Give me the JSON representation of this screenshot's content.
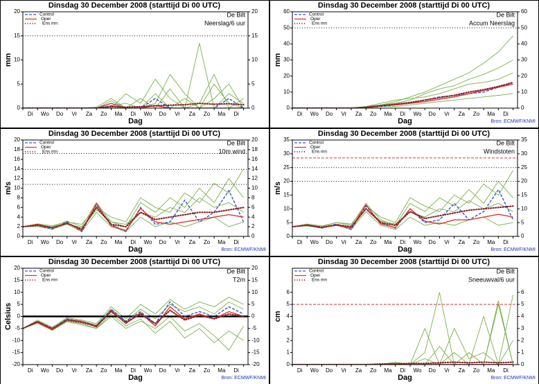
{
  "shared": {
    "x": [
      0,
      1,
      2,
      3,
      4,
      5,
      6,
      7,
      8,
      9,
      10,
      11,
      12,
      13,
      14,
      15
    ],
    "xlim": [
      0,
      15.3
    ],
    "xlabel": "Dag",
    "xticks": [
      {
        "value": 0.5,
        "label": "Di"
      },
      {
        "value": 1.5,
        "label": "Wo"
      },
      {
        "value": 2.5,
        "label": "Do"
      },
      {
        "value": 3.5,
        "label": "Vr"
      },
      {
        "value": 4.5,
        "label": "Za"
      },
      {
        "value": 5.5,
        "label": "Zo"
      },
      {
        "value": 6.5,
        "label": "Ma"
      },
      {
        "value": 7.5,
        "label": "Di"
      },
      {
        "value": 8.5,
        "label": "Wo"
      },
      {
        "value": 9.5,
        "label": "Do"
      },
      {
        "value": 10.5,
        "label": "Vr"
      },
      {
        "value": 11.5,
        "label": "Za"
      },
      {
        "value": 12.5,
        "label": "Zo"
      },
      {
        "value": 13.5,
        "label": "Ma"
      },
      {
        "value": 14.5,
        "label": "Di"
      }
    ],
    "member_color": "#77b04a"
  },
  "chart_data": [
    {
      "type": "line",
      "title": "Dinsdag   30 December  2008  (starttijd  Di 00 UTC)",
      "station": "De Bilt",
      "subtitle": "Neerslag/6 uur",
      "ylabel": "mm",
      "ylim": [
        0,
        20
      ],
      "yticks": [
        0,
        5,
        10,
        15,
        20
      ],
      "hlines": [
        {
          "value": 15,
          "style": "dotted",
          "color": "#000000"
        }
      ],
      "series": [
        {
          "name": "Control",
          "color": "#3355cc",
          "style": "dashed",
          "values": [
            0,
            0,
            0,
            0,
            0,
            0,
            0.5,
            0,
            0,
            2,
            0,
            0,
            0,
            0,
            2,
            0
          ]
        },
        {
          "name": "Oper",
          "color": "#dd3333",
          "style": "solid",
          "values": [
            0,
            0,
            0,
            0,
            0,
            0,
            1,
            0,
            0,
            0.5,
            0,
            0,
            0,
            0,
            0,
            0
          ]
        },
        {
          "name": "Ens mn",
          "color": "#882222",
          "style": "dotted",
          "values": [
            0,
            0,
            0,
            0,
            0,
            0,
            0.3,
            0.2,
            0.3,
            0.5,
            0.6,
            0.7,
            1,
            0.8,
            0.9,
            0.7
          ]
        }
      ],
      "members": [
        [
          0,
          0,
          0,
          0,
          0,
          0,
          0.5,
          1,
          0,
          3,
          0,
          2,
          0,
          5,
          1,
          0
        ],
        [
          0,
          0,
          0,
          0,
          0,
          0,
          1.5,
          0,
          2,
          0,
          4,
          0,
          13.5,
          0,
          3,
          1
        ],
        [
          0,
          0,
          0,
          0,
          0,
          0,
          0,
          3,
          1,
          6,
          2,
          0,
          1,
          7,
          0,
          2
        ],
        [
          0,
          0,
          0,
          0,
          0,
          0.2,
          2,
          0,
          0,
          1,
          7,
          3,
          0,
          2,
          5,
          0
        ]
      ]
    },
    {
      "type": "line",
      "title": "Dinsdag   30 December  2008  (starttijd  Di 00 UTC)",
      "station": "De Bilt",
      "subtitle": "Accum Neerslag",
      "ylabel": "mm",
      "source": "Bron: ECMWF/KNMI",
      "ylim": [
        0,
        60
      ],
      "yticks": [
        0,
        10,
        20,
        30,
        40,
        50,
        60
      ],
      "hlines": [
        {
          "value": 50,
          "style": "dotted",
          "color": "#000000"
        }
      ],
      "series": [
        {
          "name": "Control",
          "color": "#3355cc",
          "style": "dashed",
          "values": [
            0,
            0,
            0,
            0,
            0,
            0.5,
            1,
            2,
            3,
            5,
            7,
            8,
            9,
            10,
            13,
            16
          ]
        },
        {
          "name": "Oper",
          "color": "#dd3333",
          "style": "solid",
          "values": [
            0,
            0,
            0,
            0,
            0,
            0.5,
            1.5,
            2,
            3,
            4,
            5.5,
            7,
            9,
            11,
            13,
            15
          ]
        },
        {
          "name": "Ens mn",
          "color": "#882222",
          "style": "dotted",
          "values": [
            0,
            0,
            0,
            0,
            0,
            0.5,
            1.5,
            2.5,
            3.5,
            5,
            6.5,
            8,
            10,
            11.5,
            13.5,
            16
          ]
        }
      ],
      "members": [
        [
          0,
          0,
          0,
          0,
          0,
          1,
          2,
          4,
          7,
          10,
          14,
          18,
          22,
          28,
          35,
          45
        ],
        [
          0,
          0,
          0,
          0,
          0,
          0,
          1,
          1,
          2,
          3,
          4,
          5,
          6,
          7,
          8,
          9
        ],
        [
          0,
          0,
          0,
          0,
          0,
          0.5,
          2,
          3,
          5,
          9,
          12,
          14,
          18,
          21,
          25,
          30
        ],
        [
          0,
          0,
          0,
          0,
          0,
          1,
          3,
          5,
          6,
          7,
          9,
          12,
          15,
          16,
          18,
          22
        ]
      ]
    },
    {
      "type": "line",
      "title": "Dinsdag   30 December  2008  (starttijd  Di 00 UTC)",
      "station": "De Bilt",
      "subtitle": "10m wind",
      "ylabel": "m/s",
      "source": "Bron: ECMWF/KNMI",
      "ylim": [
        0,
        20
      ],
      "yticks": [
        0,
        2,
        4,
        6,
        8,
        10,
        12,
        14,
        16,
        18,
        20
      ],
      "hlines": [
        {
          "value": 10.8,
          "style": "dotted",
          "color": "#000000"
        },
        {
          "value": 13.9,
          "style": "dotted",
          "color": "#000000"
        },
        {
          "value": 17.2,
          "style": "dotted",
          "color": "#000000"
        }
      ],
      "series": [
        {
          "name": "Control",
          "color": "#3355cc",
          "style": "dashed",
          "values": [
            2,
            2.3,
            1.5,
            3,
            1,
            6.5,
            2.5,
            1,
            6,
            2.5,
            3,
            7.5,
            3,
            5,
            9.5,
            3
          ]
        },
        {
          "name": "Oper",
          "color": "#dd3333",
          "style": "solid",
          "values": [
            2,
            2.5,
            1.8,
            2.8,
            1.2,
            6.8,
            2.2,
            1.2,
            5.8,
            3,
            2.5,
            3,
            3.5,
            4,
            4.5,
            4
          ]
        },
        {
          "name": "Ens mn",
          "color": "#882222",
          "style": "dotted",
          "values": [
            2,
            2.3,
            1.8,
            2.7,
            1.5,
            6,
            2.5,
            2,
            5,
            3.5,
            4,
            4.5,
            5,
            5,
            5.5,
            6
          ]
        }
      ],
      "members": [
        [
          2,
          2.4,
          2,
          3.2,
          2,
          7,
          3,
          2,
          7,
          5,
          8,
          6,
          10,
          7,
          12,
          8
        ],
        [
          2,
          2,
          1.5,
          2.5,
          1,
          5,
          2,
          1,
          4,
          2,
          3,
          2,
          3,
          4,
          2,
          3
        ],
        [
          2,
          2.6,
          2.2,
          3,
          2.5,
          6,
          4,
          3,
          8,
          6,
          5,
          9,
          7,
          11,
          9,
          14
        ],
        [
          2,
          2.2,
          1.7,
          2.6,
          1.8,
          5.5,
          3,
          2.5,
          5,
          4,
          6,
          5,
          8,
          6,
          7,
          5
        ]
      ]
    },
    {
      "type": "line",
      "title": "Dinsdag   30 December  2008  (starttijd  Di 00 UTC)",
      "station": "De Bilt",
      "subtitle": "Windstoten",
      "ylabel": "m/s",
      "source": "Bron: ECMWF/KNMI",
      "ylim": [
        0,
        35
      ],
      "yticks": [
        0,
        5,
        10,
        15,
        20,
        25,
        30,
        35
      ],
      "hlines": [
        {
          "value": 28.5,
          "style": "dashed",
          "color": "#dd3333"
        },
        {
          "value": 25,
          "style": "dotted",
          "color": "#000000"
        },
        {
          "value": 20,
          "style": "dotted",
          "color": "#000000"
        }
      ],
      "series": [
        {
          "name": "Control",
          "color": "#3355cc",
          "style": "dashed",
          "values": [
            3.5,
            4,
            3,
            4.5,
            2.5,
            11,
            5,
            3,
            10,
            5,
            6,
            12,
            6,
            9,
            17,
            6
          ]
        },
        {
          "name": "Oper",
          "color": "#dd3333",
          "style": "solid",
          "values": [
            3.5,
            4.2,
            3.2,
            4,
            3,
            11.5,
            4.5,
            3.2,
            10,
            5.5,
            4.5,
            6,
            6,
            7,
            8,
            7
          ]
        },
        {
          "name": "Ens mn",
          "color": "#882222",
          "style": "dotted",
          "values": [
            3.5,
            4,
            3.3,
            4.2,
            3.5,
            10,
            5,
            4,
            9,
            6.5,
            7.5,
            8.5,
            9.5,
            10,
            10.5,
            11
          ]
        }
      ],
      "members": [
        [
          3.5,
          4.3,
          3.5,
          5,
          4,
          12,
          6,
          4,
          12,
          9,
          14,
          11,
          17,
          12,
          20,
          14
        ],
        [
          3.5,
          3.8,
          3,
          4,
          2.5,
          9,
          4,
          2.5,
          7,
          4,
          5,
          4,
          6,
          7,
          4,
          5
        ],
        [
          3.5,
          4.5,
          3.8,
          5,
          4.5,
          11,
          7,
          5,
          14,
          11,
          9,
          15,
          12,
          19,
          15,
          24
        ],
        [
          3.5,
          4,
          3.2,
          4.3,
          3,
          10,
          5.5,
          4.5,
          9,
          7,
          10,
          9,
          13,
          10,
          12,
          9
        ]
      ]
    },
    {
      "type": "line",
      "title": "Dinsdag   30 December  2008  (starttijd  Di 00 UTC)",
      "station": "De Bilt",
      "subtitle": "T2m",
      "ylabel": "Celsius",
      "source": "Bron: ECMWF/KNMI",
      "ylim": [
        -20,
        20
      ],
      "yticks": [
        -20,
        -15,
        -10,
        -5,
        0,
        5,
        10,
        15,
        20
      ],
      "hlines": [
        {
          "value": 0,
          "style": "thick",
          "color": "#000000"
        }
      ],
      "series": [
        {
          "name": "Control",
          "color": "#3355cc",
          "style": "dashed",
          "values": [
            -5,
            -2,
            -5,
            -1,
            -2,
            -4,
            3,
            -2,
            2,
            -3,
            6,
            0,
            2,
            0,
            4,
            1
          ]
        },
        {
          "name": "Oper",
          "color": "#dd3333",
          "style": "solid",
          "values": [
            -5,
            -2.5,
            -5.5,
            -1.5,
            -2,
            -4.5,
            2.5,
            -3,
            1.5,
            -4,
            4,
            -1,
            1,
            -1,
            2,
            0
          ]
        },
        {
          "name": "Ens mn",
          "color": "#882222",
          "style": "dotted",
          "values": [
            -5,
            -2.2,
            -5,
            -1.5,
            -2.5,
            -4,
            2,
            -2.5,
            1,
            -3,
            2.5,
            -1.5,
            0.5,
            -1,
            1,
            0
          ]
        }
      ],
      "members": [
        [
          -5,
          -1.5,
          -4.5,
          -0.5,
          -1.5,
          -3,
          4,
          -1,
          5,
          1,
          7,
          3,
          6,
          4,
          8,
          5
        ],
        [
          -5,
          -2.5,
          -5.5,
          -2,
          -3,
          -5,
          1,
          -4,
          -1,
          -7,
          -2,
          -9,
          -5,
          -11,
          -6,
          -10
        ],
        [
          -5,
          -2,
          -5,
          -1,
          -2,
          -3.5,
          3,
          -2,
          3,
          -1,
          5,
          2,
          4,
          1,
          6,
          3
        ],
        [
          -5,
          -2.8,
          -5.8,
          -2.2,
          -3.5,
          -5,
          0,
          -5,
          -2,
          -5,
          0,
          -6,
          -3,
          -8,
          -14,
          -4
        ]
      ]
    },
    {
      "type": "line",
      "title": "Dinsdag   30 December  2008  (starttijd  Di 00 UTC)",
      "station": "De Bilt",
      "subtitle": "Sneeuwval/6 uur",
      "ylabel": "cm",
      "source": "Bron: ECMWF/KNMI",
      "ylim": [
        0,
        8
      ],
      "yticks": [
        0,
        1,
        2,
        3,
        4,
        5,
        6
      ],
      "hlines": [
        {
          "value": 5,
          "style": "dashed",
          "color": "#dd3333"
        }
      ],
      "series": [
        {
          "name": "Control",
          "color": "#3355cc",
          "style": "dashed",
          "values": [
            0,
            0,
            0,
            0,
            0,
            0,
            0,
            0,
            0,
            0,
            0,
            0,
            0,
            0,
            0,
            0
          ]
        },
        {
          "name": "Oper",
          "color": "#dd3333",
          "style": "solid",
          "values": [
            0,
            0,
            0,
            0,
            0,
            0,
            0,
            0.1,
            0,
            0,
            0,
            0,
            0,
            0,
            0,
            0
          ]
        },
        {
          "name": "Ens mn",
          "color": "#882222",
          "style": "dotted",
          "values": [
            0,
            0,
            0,
            0,
            0,
            0,
            0.05,
            0.05,
            0.1,
            0.1,
            0.15,
            0.2,
            0.15,
            0.2,
            0.15,
            0.2
          ]
        }
      ],
      "members": [
        [
          0,
          0,
          0,
          0,
          0,
          0,
          0,
          0,
          0,
          1,
          6,
          0,
          1,
          0,
          5.3,
          0
        ],
        [
          0,
          0,
          0,
          0,
          0,
          0,
          0,
          0,
          0,
          0.5,
          0,
          3,
          0.5,
          1,
          0,
          5.8
        ],
        [
          0,
          0,
          0,
          0,
          0,
          0,
          0,
          0.2,
          0,
          0,
          1.5,
          0,
          0,
          4,
          0,
          2
        ],
        [
          0,
          0,
          0,
          0,
          0,
          0,
          0,
          0,
          0,
          3,
          0,
          1,
          0,
          0,
          5,
          0
        ]
      ]
    }
  ]
}
